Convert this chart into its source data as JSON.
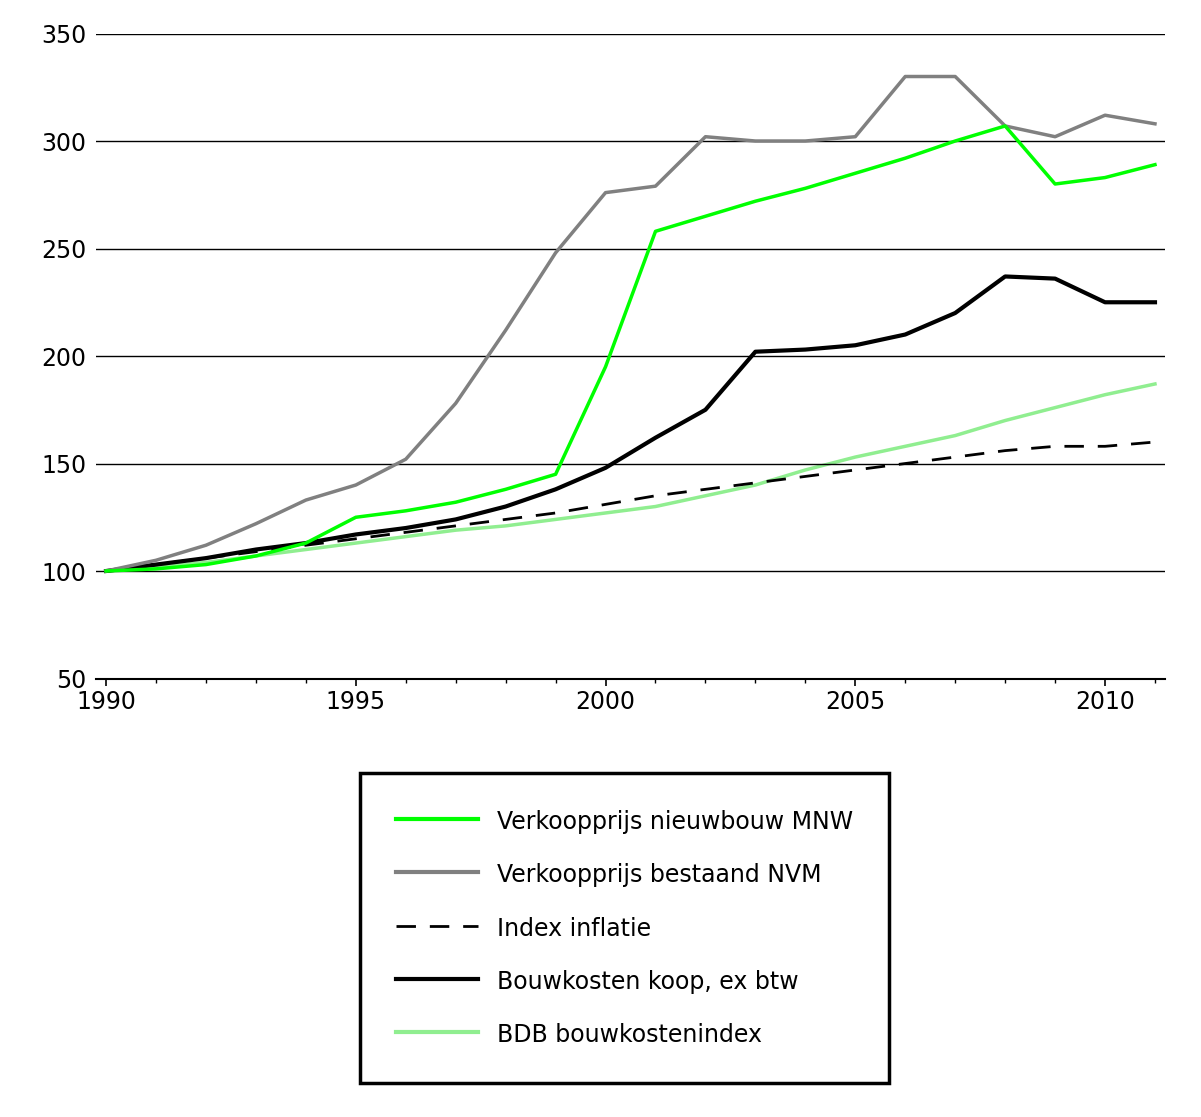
{
  "years": [
    1990,
    1991,
    1992,
    1993,
    1994,
    1995,
    1996,
    1997,
    1998,
    1999,
    2000,
    2001,
    2002,
    2003,
    2004,
    2005,
    2006,
    2007,
    2008,
    2009,
    2010,
    2011
  ],
  "verkoopprijs_nieuwbouw": [
    100,
    101,
    103,
    107,
    113,
    125,
    128,
    132,
    138,
    145,
    195,
    258,
    265,
    272,
    278,
    285,
    292,
    300,
    307,
    280,
    283,
    289
  ],
  "verkoopprijs_bestaand": [
    100,
    105,
    112,
    122,
    133,
    140,
    152,
    178,
    212,
    248,
    276,
    279,
    302,
    300,
    300,
    302,
    330,
    330,
    307,
    302,
    312,
    308
  ],
  "index_inflatie": [
    100,
    103,
    106,
    109,
    112,
    115,
    118,
    121,
    124,
    127,
    131,
    135,
    138,
    141,
    144,
    147,
    150,
    153,
    156,
    158,
    158,
    160
  ],
  "bouwkosten_koop": [
    100,
    103,
    106,
    110,
    113,
    117,
    120,
    124,
    130,
    138,
    148,
    162,
    175,
    202,
    203,
    205,
    210,
    220,
    237,
    236,
    225,
    225
  ],
  "bdb_bouwkostenindex": [
    100,
    102,
    104,
    107,
    110,
    113,
    116,
    119,
    121,
    124,
    127,
    130,
    135,
    140,
    147,
    153,
    158,
    163,
    170,
    176,
    182,
    187
  ],
  "ylim": [
    50,
    350
  ],
  "yticks": [
    50,
    100,
    150,
    200,
    250,
    300,
    350
  ],
  "xlim": [
    1990,
    2011
  ],
  "xticks": [
    1990,
    1995,
    2000,
    2005,
    2010
  ],
  "colors": {
    "nieuwbouw": "#00FF00",
    "bestaand": "#808080",
    "inflatie": "#000000",
    "bouwkosten": "#000000",
    "bdb": "#90EE90"
  },
  "legend_labels": [
    "Verkoopprijs nieuwbouw MNW",
    "Verkoopprijs bestaand NVM",
    "Index inflatie",
    "Bouwkosten koop, ex btw",
    "BDB bouwkostenindex"
  ],
  "figsize": [
    12.01,
    11.17
  ],
  "dpi": 100
}
